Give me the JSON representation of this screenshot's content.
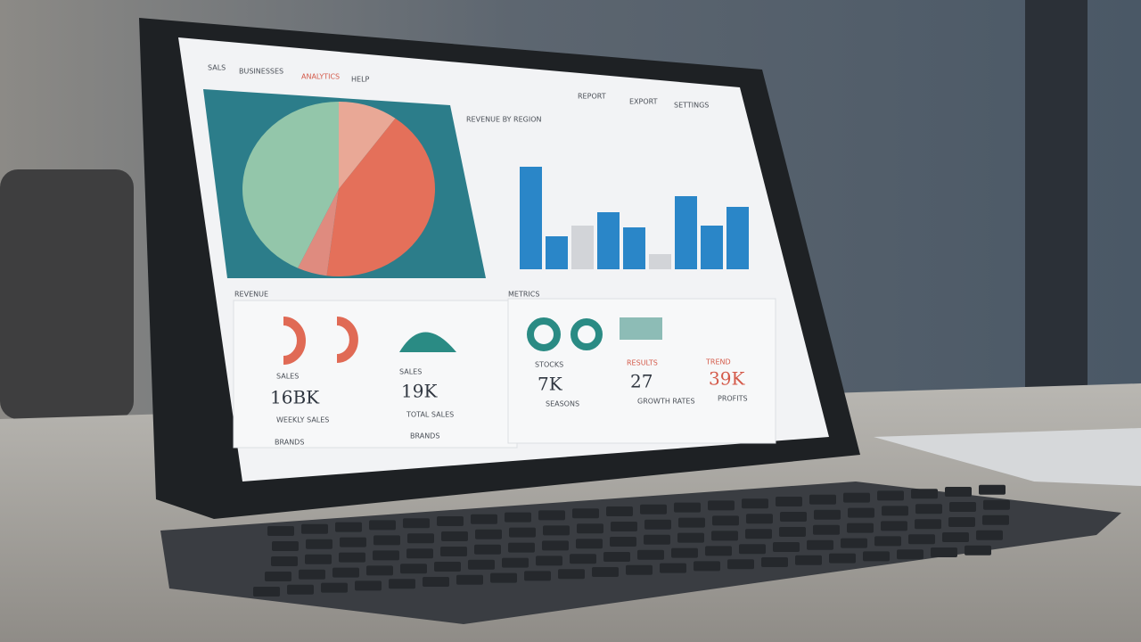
{
  "screen": {
    "nav": [
      "SALS",
      "BUSINESSES",
      "ANALYTICS",
      "HELP"
    ],
    "top_nav": [
      "REPORT",
      "EXPORT",
      "SETTINGS"
    ],
    "pie": {
      "values": [
        10,
        42,
        5,
        43
      ],
      "colors": [
        "#e9a896",
        "#e4705a",
        "#df8b7f",
        "#93c6aa"
      ]
    },
    "bar_chart": {
      "title": "REVENUE BY REGION",
      "values": [
        115,
        37,
        49,
        64,
        47,
        17,
        82,
        49,
        70
      ],
      "colors": [
        "#2a86c8",
        "#2a86c8",
        "#d2d4d8",
        "#2a86c8",
        "#2a86c8",
        "#d2d4d8",
        "#2a86c8",
        "#2a86c8",
        "#2a86c8"
      ],
      "ylim": [
        0,
        120
      ]
    },
    "left_section": {
      "title": "REVENUE",
      "kpis": [
        {
          "label": "SALES",
          "value": "16BK",
          "caption": "WEEKLY SALES",
          "footer": "BRANDS"
        },
        {
          "label": "SALES",
          "value": "19K",
          "caption": "TOTAL SALES",
          "footer": "BRANDS"
        }
      ]
    },
    "right_section": {
      "title": "METRICS",
      "kpis": [
        {
          "label": "STOCKS",
          "value": "7K",
          "caption": "SEASONS"
        },
        {
          "label": "RESULTS",
          "value": "27",
          "caption": "GROWTH RATES"
        },
        {
          "label": "TREND",
          "value": "39K",
          "caption": "PROFITS"
        }
      ]
    }
  }
}
